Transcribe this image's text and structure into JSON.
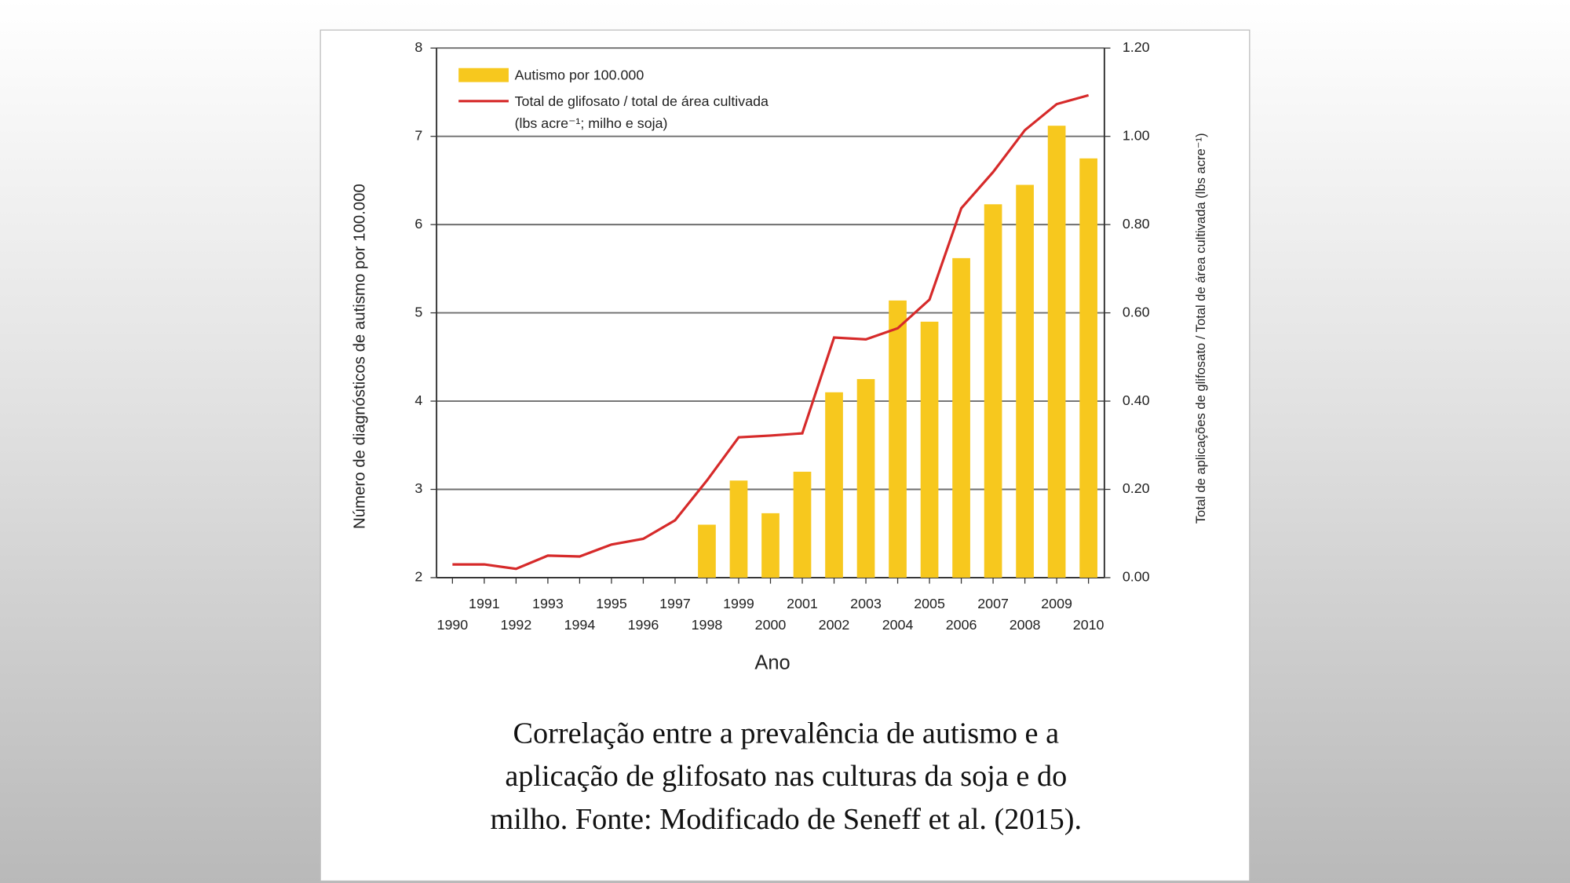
{
  "chart_data": {
    "type": "bar-line",
    "x_label": "Ano",
    "y_label": "Número de diagnósticos de autismo por 100.000",
    "y2_label": "Total de aplicações de glifosato / Total de área cultivada (lbs acre⁻¹)",
    "categories": [
      "1990",
      "1991",
      "1992",
      "1993",
      "1994",
      "1995",
      "1996",
      "1997",
      "1998",
      "1999",
      "2000",
      "2001",
      "2002",
      "2003",
      "2004",
      "2005",
      "2006",
      "2007",
      "2008",
      "2009",
      "2010"
    ],
    "series": [
      {
        "name": "Autismo por 100.000",
        "type": "bar",
        "color": "#f7c81e",
        "values": [
          null,
          null,
          null,
          null,
          null,
          null,
          null,
          null,
          2.6,
          3.1,
          2.73,
          3.2,
          4.1,
          4.25,
          5.14,
          4.9,
          5.62,
          6.23,
          6.45,
          7.12,
          6.75
        ]
      },
      {
        "name": "Total de glifosato / total de área cultivada",
        "type": "line",
        "axis": "y2",
        "color": "#d62a2a",
        "values": [
          0.03,
          0.03,
          0.02,
          0.05,
          0.048,
          0.075,
          0.088,
          0.13,
          0.22,
          0.318,
          0.322,
          0.327,
          0.544,
          0.54,
          0.565,
          0.63,
          0.837,
          0.919,
          1.014,
          1.073,
          1.093
        ]
      }
    ],
    "legend_note": "(lbs acre⁻¹; milho e soja)",
    "ylim": [
      2,
      8
    ],
    "yticks": [
      2,
      3,
      4,
      5,
      6,
      7,
      8
    ],
    "y2lim": [
      0,
      1.2
    ],
    "y2ticks": [
      {
        "value": 0,
        "label": "0.00"
      },
      {
        "value": 0.2,
        "label": "0.20"
      },
      {
        "value": 0.4,
        "label": "0.40"
      },
      {
        "value": 0.6,
        "label": "0.60"
      },
      {
        "value": 0.8,
        "label": "0.80"
      },
      {
        "value": 1.0,
        "label": "1.00"
      },
      {
        "value": 1.2,
        "label": "1.20"
      }
    ],
    "grid": true,
    "caption": [
      "Correlação entre a prevalência de autismo e a",
      "aplicação de glifosato nas culturas da soja e do",
      "milho. Fonte: Modificado de Seneff et al. (2015)."
    ]
  }
}
